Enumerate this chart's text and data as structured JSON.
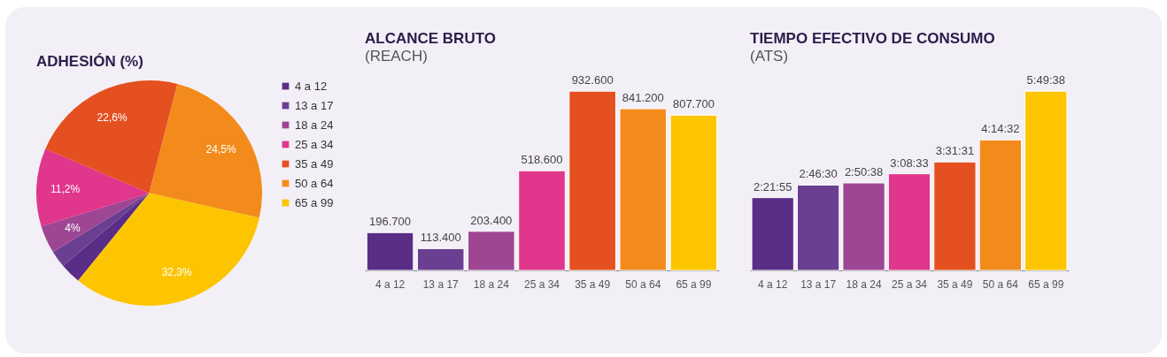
{
  "chart_data": [
    {
      "type": "pie",
      "title": "ADHESIÓN (%)",
      "categories": [
        "4 a 12",
        "13 a 17",
        "18 a 24",
        "25 a 34",
        "35 a 49",
        "50 a 64",
        "65 a 99"
      ],
      "values": [
        3.0,
        2.4,
        4,
        11.2,
        22.6,
        24.5,
        32.3
      ],
      "colors": [
        "#5a2d86",
        "#6a3f91",
        "#9e4694",
        "#e0368c",
        "#e4501f",
        "#f28b1c",
        "#fcc500"
      ],
      "value_labels": [
        null,
        null,
        "4%",
        "11,2%",
        "22,6%",
        "24,5%",
        "32,3%"
      ],
      "legend": "right"
    },
    {
      "type": "bar",
      "title": "ALCANCE BRUTO",
      "subtitle": "(REACH)",
      "categories": [
        "4 a 12",
        "13 a 17",
        "18 a 24",
        "25 a 34",
        "35 a 49",
        "50 a 64",
        "65 a 99"
      ],
      "values": [
        196700,
        113400,
        203400,
        518600,
        932600,
        841200,
        807700
      ],
      "colors": [
        "#5a2d86",
        "#6a3f91",
        "#9e4694",
        "#e0368c",
        "#e4501f",
        "#f28b1c",
        "#fcc500"
      ],
      "value_labels": [
        "196.700",
        "113.400",
        "203.400",
        "518.600",
        "932.600",
        "841.200",
        "807.700"
      ]
    },
    {
      "type": "bar",
      "title": "TIEMPO EFECTIVO DE CONSUMO",
      "subtitle": "(ATS)",
      "categories": [
        "4 a 12",
        "13 a 17",
        "18 a 24",
        "25 a 34",
        "35 a 49",
        "50 a 64",
        "65 a 99"
      ],
      "values": [
        2.36528,
        2.775,
        2.84389,
        3.1425,
        3.52528,
        4.24222,
        5.82722
      ],
      "colors": [
        "#5a2d86",
        "#6a3f91",
        "#9e4694",
        "#e0368c",
        "#e4501f",
        "#f28b1c",
        "#fcc500"
      ],
      "value_labels": [
        "2:21:55",
        "2:46:30",
        "2:50:38",
        "3:08:33",
        "3:31:31",
        "4:14:32",
        "5:49:38"
      ]
    }
  ]
}
